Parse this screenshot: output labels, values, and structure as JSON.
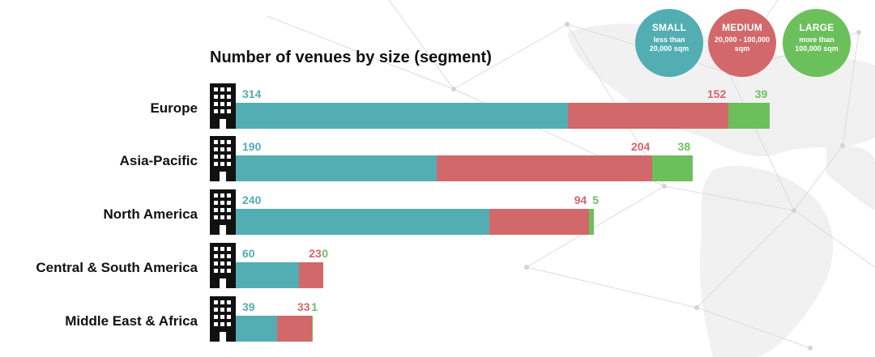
{
  "chart_data": {
    "type": "bar",
    "orientation": "horizontal",
    "stacked": true,
    "title": "Number of venues by size (segment)",
    "categories": [
      "Europe",
      "Asia-Pacific",
      "North America",
      "Central & South America",
      "Middle East & Africa"
    ],
    "series": [
      {
        "name": "SMALL",
        "description": "less than 20,000 sqm",
        "color": "#52aeb2",
        "values": [
          314,
          190,
          240,
          60,
          39
        ]
      },
      {
        "name": "MEDIUM",
        "description": "20,000 - 100,000 sqm",
        "color": "#d2686a",
        "values": [
          152,
          204,
          94,
          23,
          33
        ]
      },
      {
        "name": "LARGE",
        "description": "more than 100,000 sqm",
        "color": "#6cc05b",
        "values": [
          39,
          38,
          5,
          0,
          1
        ]
      }
    ],
    "legend": "top-right"
  },
  "legend": [
    {
      "name": "SMALL",
      "line1": "less than",
      "line2": "20,000 sqm",
      "color": "#52aeb2"
    },
    {
      "name": "MEDIUM",
      "line1": "20,000 - 100,000",
      "line2": "sqm",
      "color": "#d2686a"
    },
    {
      "name": "LARGE",
      "line1": "more than",
      "line2": "100,000 sqm",
      "color": "#6cc05b"
    }
  ],
  "icon": "building-icon"
}
